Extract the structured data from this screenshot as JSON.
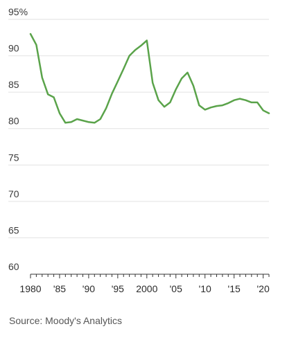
{
  "chart_data": {
    "type": "line",
    "title": "",
    "xlabel": "",
    "ylabel": "",
    "ylim": [
      60,
      95
    ],
    "xlim": [
      1980,
      2021
    ],
    "y_ticks": [
      {
        "value": 95,
        "label": "95%"
      },
      {
        "value": 90,
        "label": "90"
      },
      {
        "value": 85,
        "label": "85"
      },
      {
        "value": 80,
        "label": "80"
      },
      {
        "value": 75,
        "label": "75"
      },
      {
        "value": 70,
        "label": "70"
      },
      {
        "value": 65,
        "label": "65"
      },
      {
        "value": 60,
        "label": "60"
      }
    ],
    "x_ticks": [
      {
        "value": 1980,
        "label": "1980"
      },
      {
        "value": 1985,
        "label": "'85"
      },
      {
        "value": 1990,
        "label": "'90"
      },
      {
        "value": 1995,
        "label": "'95"
      },
      {
        "value": 2000,
        "label": "2000"
      },
      {
        "value": 2005,
        "label": "'05"
      },
      {
        "value": 2010,
        "label": "'10"
      },
      {
        "value": 2015,
        "label": "'15"
      },
      {
        "value": 2020,
        "label": "'20"
      }
    ],
    "grid": true,
    "series": [
      {
        "color": "#5aa34a",
        "x": [
          1980,
          1981,
          1982,
          1983,
          1984,
          1985,
          1986,
          1987,
          1988,
          1989,
          1990,
          1991,
          1992,
          1993,
          1994,
          1995,
          1996,
          1997,
          1998,
          1999,
          2000,
          2001,
          2002,
          2003,
          2004,
          2005,
          2006,
          2007,
          2008,
          2009,
          2010,
          2011,
          2012,
          2013,
          2014,
          2015,
          2016,
          2017,
          2018,
          2019,
          2020,
          2021
        ],
        "values": [
          93.0,
          91.5,
          87.0,
          84.7,
          84.3,
          82.1,
          80.8,
          80.9,
          81.3,
          81.1,
          80.9,
          80.8,
          81.3,
          82.8,
          84.8,
          86.5,
          88.2,
          90.0,
          90.8,
          91.4,
          92.1,
          86.3,
          83.9,
          83.0,
          83.6,
          85.4,
          86.9,
          87.7,
          85.9,
          83.2,
          82.6,
          82.9,
          83.1,
          83.2,
          83.5,
          83.9,
          84.1,
          83.9,
          83.6,
          83.6,
          82.5,
          82.1
        ]
      }
    ]
  },
  "source": "Source: Moody's Analytics"
}
